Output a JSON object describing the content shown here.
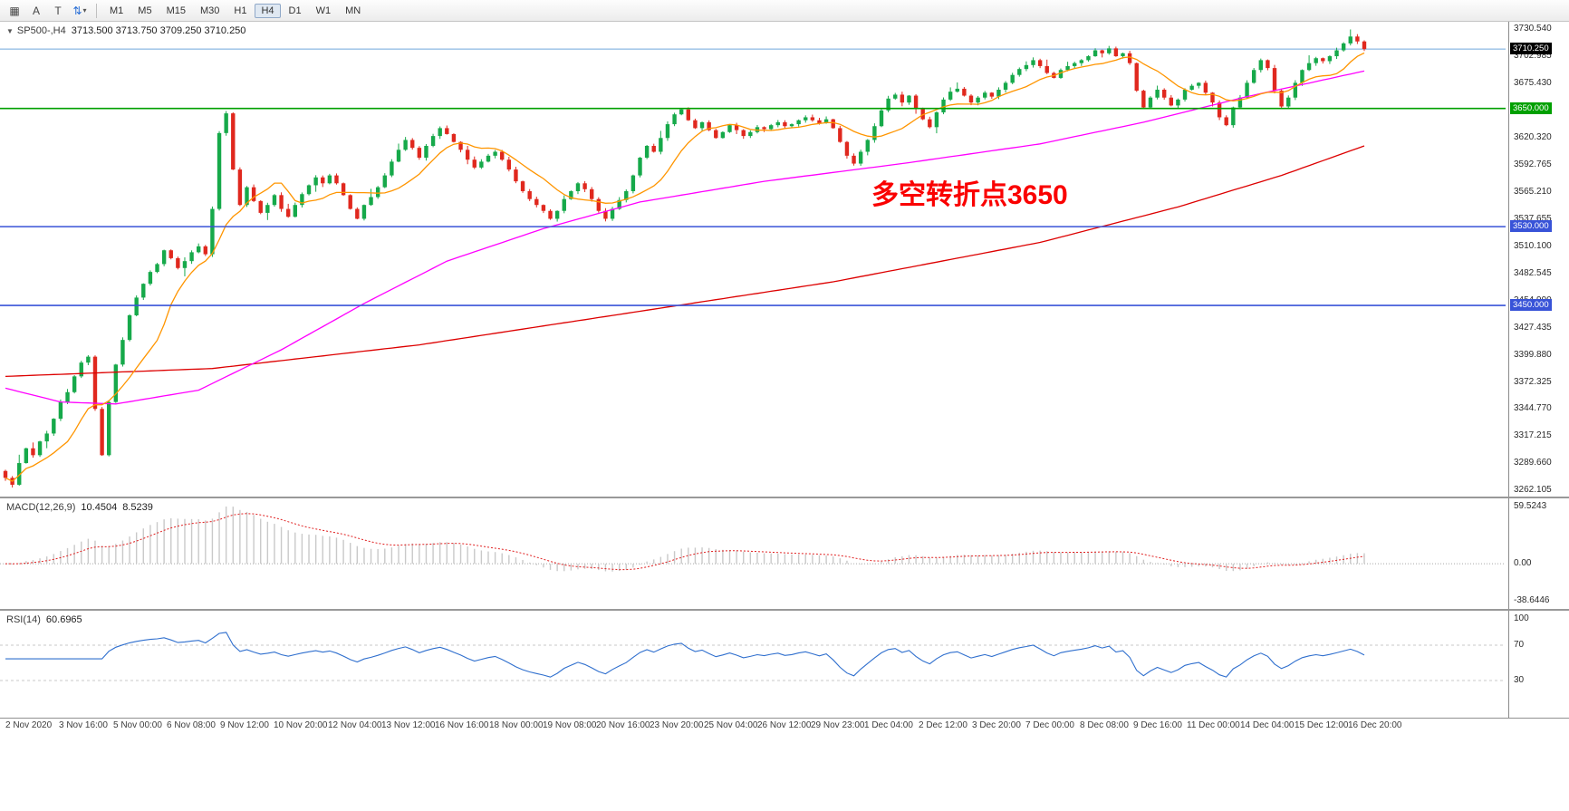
{
  "colors": {
    "up": "#16a94a",
    "down": "#e0281e",
    "ma_fast": "#ff9500",
    "ma_mid": "#ff00ff",
    "ma_slow": "#dd0000",
    "level_green": "#00a000",
    "level_blue": "#3853d8",
    "current_price_line": "#6fa8dc",
    "macd_hist": "#c9c9c9",
    "macd_signal": "#e02020",
    "rsi_line": "#2f6fce",
    "rsi_level_line": "#c8c8c8",
    "annotation": "#fa0000",
    "current_price_tag_bg": "#000000"
  },
  "toolbar": {
    "tools": [
      {
        "name": "symbols-grid",
        "glyph": "▦"
      },
      {
        "name": "cursor",
        "glyph": "A"
      },
      {
        "name": "text",
        "glyph": "T"
      },
      {
        "name": "swap-arrows",
        "glyph": "⇅",
        "caret": "▾"
      }
    ],
    "timeframes": [
      {
        "label": "M1",
        "active": false
      },
      {
        "label": "M5",
        "active": false
      },
      {
        "label": "M15",
        "active": false
      },
      {
        "label": "M30",
        "active": false
      },
      {
        "label": "H1",
        "active": false
      },
      {
        "label": "H4",
        "active": true
      },
      {
        "label": "D1",
        "active": false
      },
      {
        "label": "W1",
        "active": false
      },
      {
        "label": "MN",
        "active": false
      }
    ]
  },
  "main_panel": {
    "dropdown_glyph": "▼",
    "symbol": "SP500-,H4",
    "ohlc": "3713.500 3713.750 3709.250 3710.250",
    "annotation": "多空转折点3650",
    "y_axis_labels": [
      "3730.540",
      "3702.985",
      "3675.430",
      "3647.875",
      "3620.320",
      "3592.765",
      "3565.210",
      "3537.655",
      "3510.100",
      "3482.545",
      "3454.990",
      "3427.435",
      "3399.880",
      "3372.325",
      "3344.770",
      "3317.215",
      "3289.660",
      "3262.105"
    ],
    "current_price_label": "3710.250",
    "level_labels": [
      {
        "text": "3650.000",
        "price": 3650,
        "bg": "#00a000"
      },
      {
        "text": "3530.000",
        "price": 3530,
        "bg": "#3853d8"
      },
      {
        "text": "3450.000",
        "price": 3450,
        "bg": "#3853d8"
      }
    ]
  },
  "macd_panel": {
    "label": "MACD(12,26,9)",
    "main_value": "10.4504",
    "signal_value": "8.5239",
    "axis": [
      {
        "text": "59.5243",
        "value": 59.5243
      },
      {
        "text": "0.00",
        "value": 0
      },
      {
        "text": "-38.6446",
        "value": -38.6446
      }
    ]
  },
  "rsi_panel": {
    "label": "RSI(14)",
    "value": "60.6965",
    "axis": [
      {
        "text": "100",
        "value": 100
      },
      {
        "text": "70",
        "value": 70
      },
      {
        "text": "30",
        "value": 30
      }
    ]
  },
  "time_axis": [
    "2 Nov 2020",
    "3 Nov 16:00",
    "5 Nov 00:00",
    "6 Nov 08:00",
    "9 Nov 12:00",
    "10 Nov 20:00",
    "12 Nov 04:00",
    "13 Nov 12:00",
    "16 Nov 16:00",
    "18 Nov 00:00",
    "19 Nov 08:00",
    "20 Nov 16:00",
    "23 Nov 20:00",
    "25 Nov 04:00",
    "26 Nov 12:00",
    "29 Nov 23:00",
    "1 Dec 04:00",
    "2 Dec 12:00",
    "3 Dec 20:00",
    "7 Dec 00:00",
    "8 Dec 08:00",
    "9 Dec 16:00",
    "11 Dec 00:00",
    "14 Dec 04:00",
    "15 Dec 12:00",
    "16 Dec 20:00"
  ],
  "chart_data": {
    "type": "candlestick",
    "symbol": "SP500-",
    "timeframe": "H4",
    "title": "SP500-,H4",
    "last_bar_ohlc": {
      "open": 3713.5,
      "high": 3713.75,
      "low": 3709.25,
      "close": 3710.25
    },
    "ylim": [
      3256,
      3738
    ],
    "first_open": 3282,
    "closes": [
      3275,
      3268,
      3290,
      3305,
      3298,
      3312,
      3320,
      3335,
      3352,
      3362,
      3378,
      3392,
      3398,
      3345,
      3298,
      3352,
      3390,
      3415,
      3440,
      3458,
      3472,
      3484,
      3492,
      3506,
      3498,
      3488,
      3495,
      3504,
      3510,
      3502,
      3548,
      3625,
      3645,
      3588,
      3552,
      3570,
      3556,
      3544,
      3552,
      3562,
      3548,
      3540,
      3552,
      3563,
      3572,
      3580,
      3574,
      3582,
      3574,
      3562,
      3548,
      3538,
      3552,
      3560,
      3570,
      3582,
      3596,
      3608,
      3618,
      3610,
      3600,
      3612,
      3622,
      3630,
      3624,
      3616,
      3608,
      3598,
      3590,
      3596,
      3602,
      3606,
      3598,
      3588,
      3576,
      3566,
      3558,
      3552,
      3546,
      3538,
      3546,
      3558,
      3566,
      3574,
      3568,
      3558,
      3546,
      3538,
      3548,
      3557,
      3566,
      3582,
      3600,
      3612,
      3606,
      3620,
      3634,
      3644,
      3649,
      3638,
      3630,
      3636,
      3628,
      3620,
      3626,
      3633,
      3628,
      3622,
      3626,
      3631,
      3629,
      3633,
      3636,
      3632,
      3634,
      3638,
      3641,
      3638,
      3635,
      3639,
      3630,
      3616,
      3602,
      3594,
      3606,
      3618,
      3632,
      3648,
      3660,
      3664,
      3656,
      3663,
      3650,
      3639,
      3631,
      3646,
      3659,
      3667,
      3670,
      3663,
      3656,
      3661,
      3666,
      3662,
      3669,
      3676,
      3684,
      3690,
      3694,
      3699,
      3693,
      3686,
      3681,
      3689,
      3693,
      3696,
      3699,
      3703,
      3709,
      3706,
      3711,
      3703,
      3706,
      3696,
      3668,
      3651,
      3661,
      3669,
      3661,
      3653,
      3659,
      3669,
      3673,
      3676,
      3666,
      3656,
      3641,
      3633,
      3651,
      3661,
      3676,
      3689,
      3699,
      3691,
      3668,
      3652,
      3661,
      3676,
      3689,
      3696,
      3701,
      3698,
      3703,
      3709,
      3716,
      3723,
      3718,
      3710.25
    ],
    "horizontal_levels": [
      3650,
      3530,
      3450
    ],
    "current_price": 3710.25,
    "ma": {
      "fast_period": 10,
      "mid_waypoints": [
        [
          0,
          3366
        ],
        [
          8,
          3352
        ],
        [
          16,
          3350
        ],
        [
          28,
          3364
        ],
        [
          40,
          3405
        ],
        [
          52,
          3452
        ],
        [
          64,
          3495
        ],
        [
          78,
          3528
        ],
        [
          92,
          3555
        ],
        [
          110,
          3576
        ],
        [
          130,
          3594
        ],
        [
          150,
          3614
        ],
        [
          165,
          3636
        ],
        [
          180,
          3662
        ],
        [
          197,
          3688
        ]
      ],
      "slow_waypoints": [
        [
          0,
          3378
        ],
        [
          30,
          3386
        ],
        [
          60,
          3410
        ],
        [
          90,
          3442
        ],
        [
          120,
          3474
        ],
        [
          150,
          3514
        ],
        [
          170,
          3550
        ],
        [
          185,
          3582
        ],
        [
          197,
          3612
        ]
      ]
    },
    "macd": {
      "params": [
        12,
        26,
        9
      ],
      "display_max": 59.5243,
      "ylim": [
        -47,
        68
      ],
      "last_values": [
        10.4504,
        8.5239
      ]
    },
    "rsi": {
      "period": 14,
      "levels": [
        70,
        30
      ],
      "ylim": [
        -12,
        109
      ],
      "last_value": 60.6965
    }
  }
}
